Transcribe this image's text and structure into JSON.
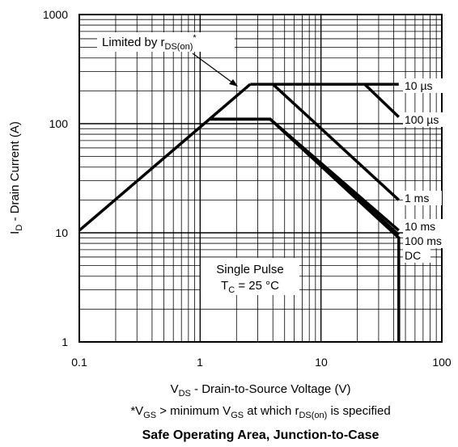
{
  "chart_data": {
    "type": "line",
    "title": "Safe Operating Area, Junction-to-Case",
    "xscale": "log",
    "yscale": "log",
    "xlim": [
      0.1,
      100
    ],
    "ylim": [
      1,
      1000
    ],
    "grid": true,
    "x_ticks": [
      "0.1",
      "1",
      "10",
      "100"
    ],
    "y_ticks": [
      "1",
      "10",
      "100",
      "1000"
    ],
    "xlabel": {
      "main": "V",
      "sub": "DS",
      "rest": " - Drain-to-Source Voltage (V)"
    },
    "ylabel": {
      "main": "I",
      "sub": "D",
      "rest": " - Drain Current (A)"
    },
    "footnote": {
      "p1": "*V",
      "s1": "GS",
      "p2": " > minimum V",
      "s2": "GS",
      "p3": " at which r",
      "s3": "DS(on)",
      "p4": " is specified"
    },
    "limit_annotation": {
      "p1": "Limited by r",
      "s1": "DS(on)",
      "p2": "*"
    },
    "info_box": {
      "line1": "Single Pulse",
      "line2_p1": "T",
      "line2_s1": "C",
      "line2_p2": " = 25 °C"
    },
    "series": [
      {
        "name": "10 µs",
        "x": [
          2.6,
          23,
          44
        ],
        "y": [
          230,
          230,
          230
        ]
      },
      {
        "name": "100 µs",
        "x": [
          4,
          23,
          44
        ],
        "y": [
          230,
          230,
          115
        ]
      },
      {
        "name": "1 ms",
        "x": [
          4,
          44
        ],
        "y": [
          230,
          20
        ]
      },
      {
        "name": "10 ms",
        "x": [
          1.2,
          3.8,
          44
        ],
        "y": [
          110,
          110,
          10.5
        ]
      },
      {
        "name": "100 ms",
        "x": [
          1.2,
          3.8,
          44
        ],
        "y": [
          110,
          110,
          9.6
        ]
      },
      {
        "name": "DC",
        "x": [
          1.2,
          3.8,
          44,
          44
        ],
        "y": [
          110,
          110,
          9,
          1
        ]
      },
      {
        "name": "Limited by rDS(on)*",
        "x": [
          0.1,
          2.6
        ],
        "y": [
          10.5,
          230
        ]
      }
    ],
    "colors": {
      "line": "#000000",
      "grid": "#000000",
      "background": "#ffffff"
    }
  }
}
